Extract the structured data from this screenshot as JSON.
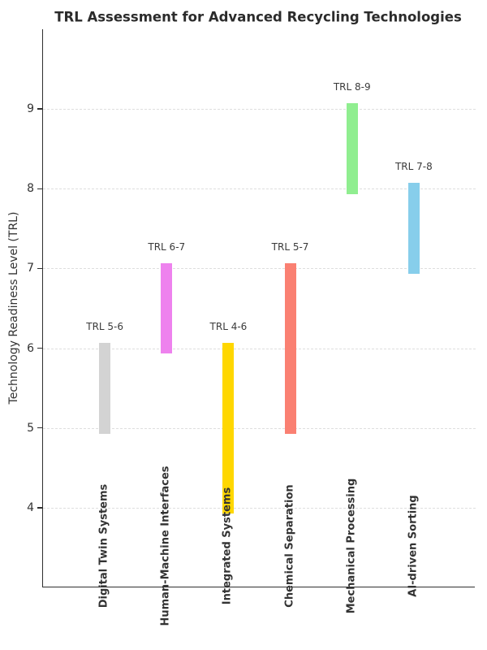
{
  "chart_data": {
    "type": "bar",
    "subtype": "floating-range-bars-vertical",
    "title": "TRL Assessment for Advanced Recycling Technologies",
    "xlabel": "",
    "ylabel": "Technology Readiness Level (TRL)",
    "ylim": [
      3,
      10
    ],
    "y_ticks": [
      4,
      5,
      6,
      7,
      8,
      9
    ],
    "y_tick_labels": [
      "4",
      "5",
      "6",
      "7",
      "8",
      "9"
    ],
    "grid": "horizontal-dashed",
    "legend": "none",
    "background_color": "#ffffff",
    "categories": [
      "Digital Twin Systems",
      "Human-Machine Interfaces",
      "Integrated Systems",
      "Chemical Separation",
      "Mechanical Processing",
      "AI-driven Sorting"
    ],
    "bars": [
      {
        "category": "Digital Twin Systems",
        "trl_min": 5,
        "trl_max": 6,
        "range_label": "TRL 5-6",
        "color": "#D3D3D3"
      },
      {
        "category": "Human-Machine Interfaces",
        "trl_min": 6,
        "trl_max": 7,
        "range_label": "TRL 6-7",
        "color": "#EE82EE"
      },
      {
        "category": "Integrated Systems",
        "trl_min": 4,
        "trl_max": 6,
        "range_label": "TRL 4-6",
        "color": "#FFD700"
      },
      {
        "category": "Chemical Separation",
        "trl_min": 5,
        "trl_max": 7,
        "range_label": "TRL 5-7",
        "color": "#FA8072"
      },
      {
        "category": "Mechanical Processing",
        "trl_min": 8,
        "trl_max": 9,
        "range_label": "TRL 8-9",
        "color": "#90EE90"
      },
      {
        "category": "AI-driven Sorting",
        "trl_min": 7,
        "trl_max": 8,
        "range_label": "TRL 7-8",
        "color": "#87CEEB"
      }
    ]
  }
}
